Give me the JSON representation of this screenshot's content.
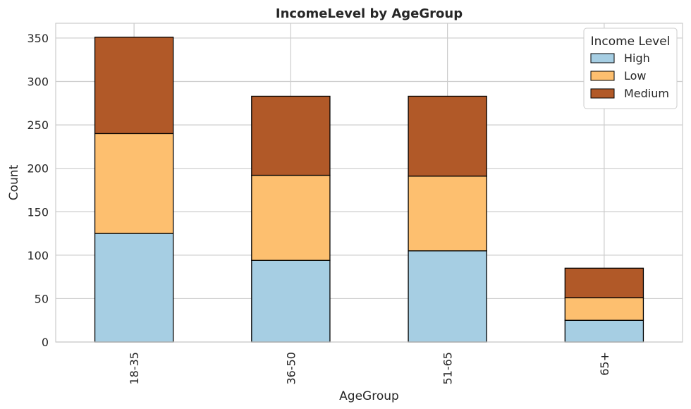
{
  "chart_data": {
    "type": "bar",
    "stacked": true,
    "title": "IncomeLevel by AgeGroup",
    "xlabel": "AgeGroup",
    "ylabel": "Count",
    "categories": [
      "18-35",
      "36-50",
      "51-65",
      "65+"
    ],
    "series": [
      {
        "name": "High",
        "values": [
          125,
          94,
          105,
          25
        ],
        "color": "#a6cee3"
      },
      {
        "name": "Low",
        "values": [
          115,
          98,
          86,
          26
        ],
        "color": "#fdbf6f"
      },
      {
        "name": "Medium",
        "values": [
          111,
          91,
          92,
          34
        ],
        "color": "#b15928"
      }
    ],
    "ylim": [
      0,
      367
    ],
    "yticks": [
      0,
      50,
      100,
      150,
      200,
      250,
      300,
      350
    ],
    "grid": true,
    "legend": {
      "title": "Income Level",
      "position": "top-right"
    },
    "bar_edge_color": "#000000",
    "grid_color": "#cccccc"
  }
}
